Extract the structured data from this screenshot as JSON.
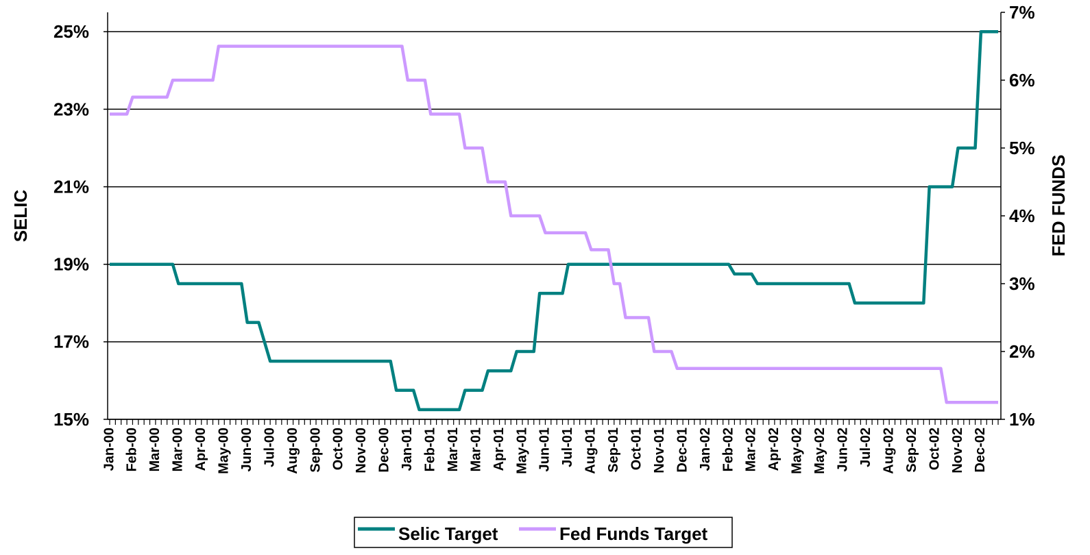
{
  "chart_data": {
    "type": "line",
    "y_label": "SELIC",
    "y2_label": "FED FUNDS",
    "categories": [
      "Jan-00",
      null,
      null,
      null,
      "Feb-00",
      null,
      null,
      null,
      "Mar-00",
      null,
      null,
      null,
      "Mar-00",
      null,
      null,
      null,
      "Apr-00",
      null,
      null,
      null,
      "May-00",
      null,
      null,
      null,
      "Jun-00",
      null,
      null,
      null,
      "Jul-00",
      null,
      null,
      null,
      "Aug-00",
      null,
      null,
      null,
      "Sep-00",
      null,
      null,
      null,
      "Oct-00",
      null,
      null,
      null,
      "Nov-00",
      null,
      null,
      null,
      "Dec-00",
      null,
      null,
      null,
      "Jan-01",
      null,
      null,
      null,
      "Feb-01",
      null,
      null,
      null,
      "Mar-01",
      null,
      null,
      null,
      "Mar-01",
      null,
      null,
      null,
      "Apr-01",
      null,
      null,
      null,
      "May-01",
      null,
      null,
      null,
      "Jun-01",
      null,
      null,
      null,
      "Jul-01",
      null,
      null,
      null,
      "Aug-01",
      null,
      null,
      null,
      "Sep-01",
      null,
      null,
      null,
      "Oct-01",
      null,
      null,
      null,
      "Nov-01",
      null,
      null,
      null,
      "Dec-01",
      null,
      null,
      null,
      "Jan-02",
      null,
      null,
      null,
      "Feb-02",
      null,
      null,
      null,
      "Mar-02",
      null,
      null,
      null,
      "Apr-02",
      null,
      null,
      null,
      "May-02",
      null,
      null,
      null,
      "May-02",
      null,
      null,
      null,
      "Jun-02",
      null,
      null,
      null,
      "Jul-02",
      null,
      null,
      null,
      "Aug-02",
      null,
      null,
      null,
      "Sep-02",
      null,
      null,
      null,
      "Oct-02",
      null,
      null,
      null,
      "Nov-02",
      null,
      null,
      null,
      "Dec-02",
      null,
      null,
      null
    ],
    "series": [
      {
        "name": "Selic Target",
        "color": "#008080",
        "values": [
          19,
          19,
          19,
          19,
          19,
          19,
          19,
          19,
          19,
          19,
          19,
          19,
          18.5,
          18.5,
          18.5,
          18.5,
          18.5,
          18.5,
          18.5,
          18.5,
          18.5,
          18.5,
          18.5,
          18.5,
          17.5,
          17.5,
          17.5,
          17,
          16.5,
          16.5,
          16.5,
          16.5,
          16.5,
          16.5,
          16.5,
          16.5,
          16.5,
          16.5,
          16.5,
          16.5,
          16.5,
          16.5,
          16.5,
          16.5,
          16.5,
          16.5,
          16.5,
          16.5,
          16.5,
          16.5,
          15.75,
          15.75,
          15.75,
          15.75,
          15.25,
          15.25,
          15.25,
          15.25,
          15.25,
          15.25,
          15.25,
          15.25,
          15.75,
          15.75,
          15.75,
          15.75,
          16.25,
          16.25,
          16.25,
          16.25,
          16.25,
          16.75,
          16.75,
          16.75,
          16.75,
          18.25,
          18.25,
          18.25,
          18.25,
          18.25,
          19,
          19,
          19,
          19,
          19,
          19,
          19,
          19,
          19,
          19,
          19,
          19,
          19,
          19,
          19,
          19,
          19,
          19,
          19,
          19,
          19,
          19,
          19,
          19,
          19,
          19,
          19,
          19,
          19,
          18.75,
          18.75,
          18.75,
          18.75,
          18.5,
          18.5,
          18.5,
          18.5,
          18.5,
          18.5,
          18.5,
          18.5,
          18.5,
          18.5,
          18.5,
          18.5,
          18.5,
          18.5,
          18.5,
          18.5,
          18.5,
          18,
          18,
          18,
          18,
          18,
          18,
          18,
          18,
          18,
          18,
          18,
          18,
          18,
          21,
          21,
          21,
          21,
          21,
          22,
          22,
          22,
          22,
          25,
          25,
          25,
          25
        ]
      },
      {
        "name": "Fed Funds Target",
        "color": "#cc99ff",
        "axis": "y2",
        "values": [
          5.5,
          5.5,
          5.5,
          5.5,
          5.75,
          5.75,
          5.75,
          5.75,
          5.75,
          5.75,
          5.75,
          6,
          6,
          6,
          6,
          6,
          6,
          6,
          6,
          6.5,
          6.5,
          6.5,
          6.5,
          6.5,
          6.5,
          6.5,
          6.5,
          6.5,
          6.5,
          6.5,
          6.5,
          6.5,
          6.5,
          6.5,
          6.5,
          6.5,
          6.5,
          6.5,
          6.5,
          6.5,
          6.5,
          6.5,
          6.5,
          6.5,
          6.5,
          6.5,
          6.5,
          6.5,
          6.5,
          6.5,
          6.5,
          6.5,
          6,
          6,
          6,
          6,
          5.5,
          5.5,
          5.5,
          5.5,
          5.5,
          5.5,
          5,
          5,
          5,
          5,
          4.5,
          4.5,
          4.5,
          4.5,
          4,
          4,
          4,
          4,
          4,
          4,
          3.75,
          3.75,
          3.75,
          3.75,
          3.75,
          3.75,
          3.75,
          3.75,
          3.5,
          3.5,
          3.5,
          3.5,
          3,
          3,
          2.5,
          2.5,
          2.5,
          2.5,
          2.5,
          2,
          2,
          2,
          2,
          1.75,
          1.75,
          1.75,
          1.75,
          1.75,
          1.75,
          1.75,
          1.75,
          1.75,
          1.75,
          1.75,
          1.75,
          1.75,
          1.75,
          1.75,
          1.75,
          1.75,
          1.75,
          1.75,
          1.75,
          1.75,
          1.75,
          1.75,
          1.75,
          1.75,
          1.75,
          1.75,
          1.75,
          1.75,
          1.75,
          1.75,
          1.75,
          1.75,
          1.75,
          1.75,
          1.75,
          1.75,
          1.75,
          1.75,
          1.75,
          1.75,
          1.75,
          1.75,
          1.75,
          1.75,
          1.75,
          1.75,
          1.25,
          1.25,
          1.25,
          1.25,
          1.25,
          1.25,
          1.25,
          1.25,
          1.25,
          1.25
        ]
      }
    ],
    "ylim": [
      15,
      25.5
    ],
    "yticks": [
      {
        "value": 15,
        "label": "15%"
      },
      {
        "value": 17,
        "label": "17%"
      },
      {
        "value": 19,
        "label": "19%"
      },
      {
        "value": 21,
        "label": "21%"
      },
      {
        "value": 23,
        "label": "23%"
      },
      {
        "value": 25,
        "label": "25%"
      }
    ],
    "y2lim": [
      1,
      7
    ],
    "y2ticks": [
      {
        "value": 1,
        "label": "1%"
      },
      {
        "value": 2,
        "label": "2%"
      },
      {
        "value": 3,
        "label": "3%"
      },
      {
        "value": 4,
        "label": "4%"
      },
      {
        "value": 5,
        "label": "5%"
      },
      {
        "value": 6,
        "label": "6%"
      },
      {
        "value": 7,
        "label": "7%"
      }
    ],
    "grid": true,
    "legend": "bottom"
  }
}
